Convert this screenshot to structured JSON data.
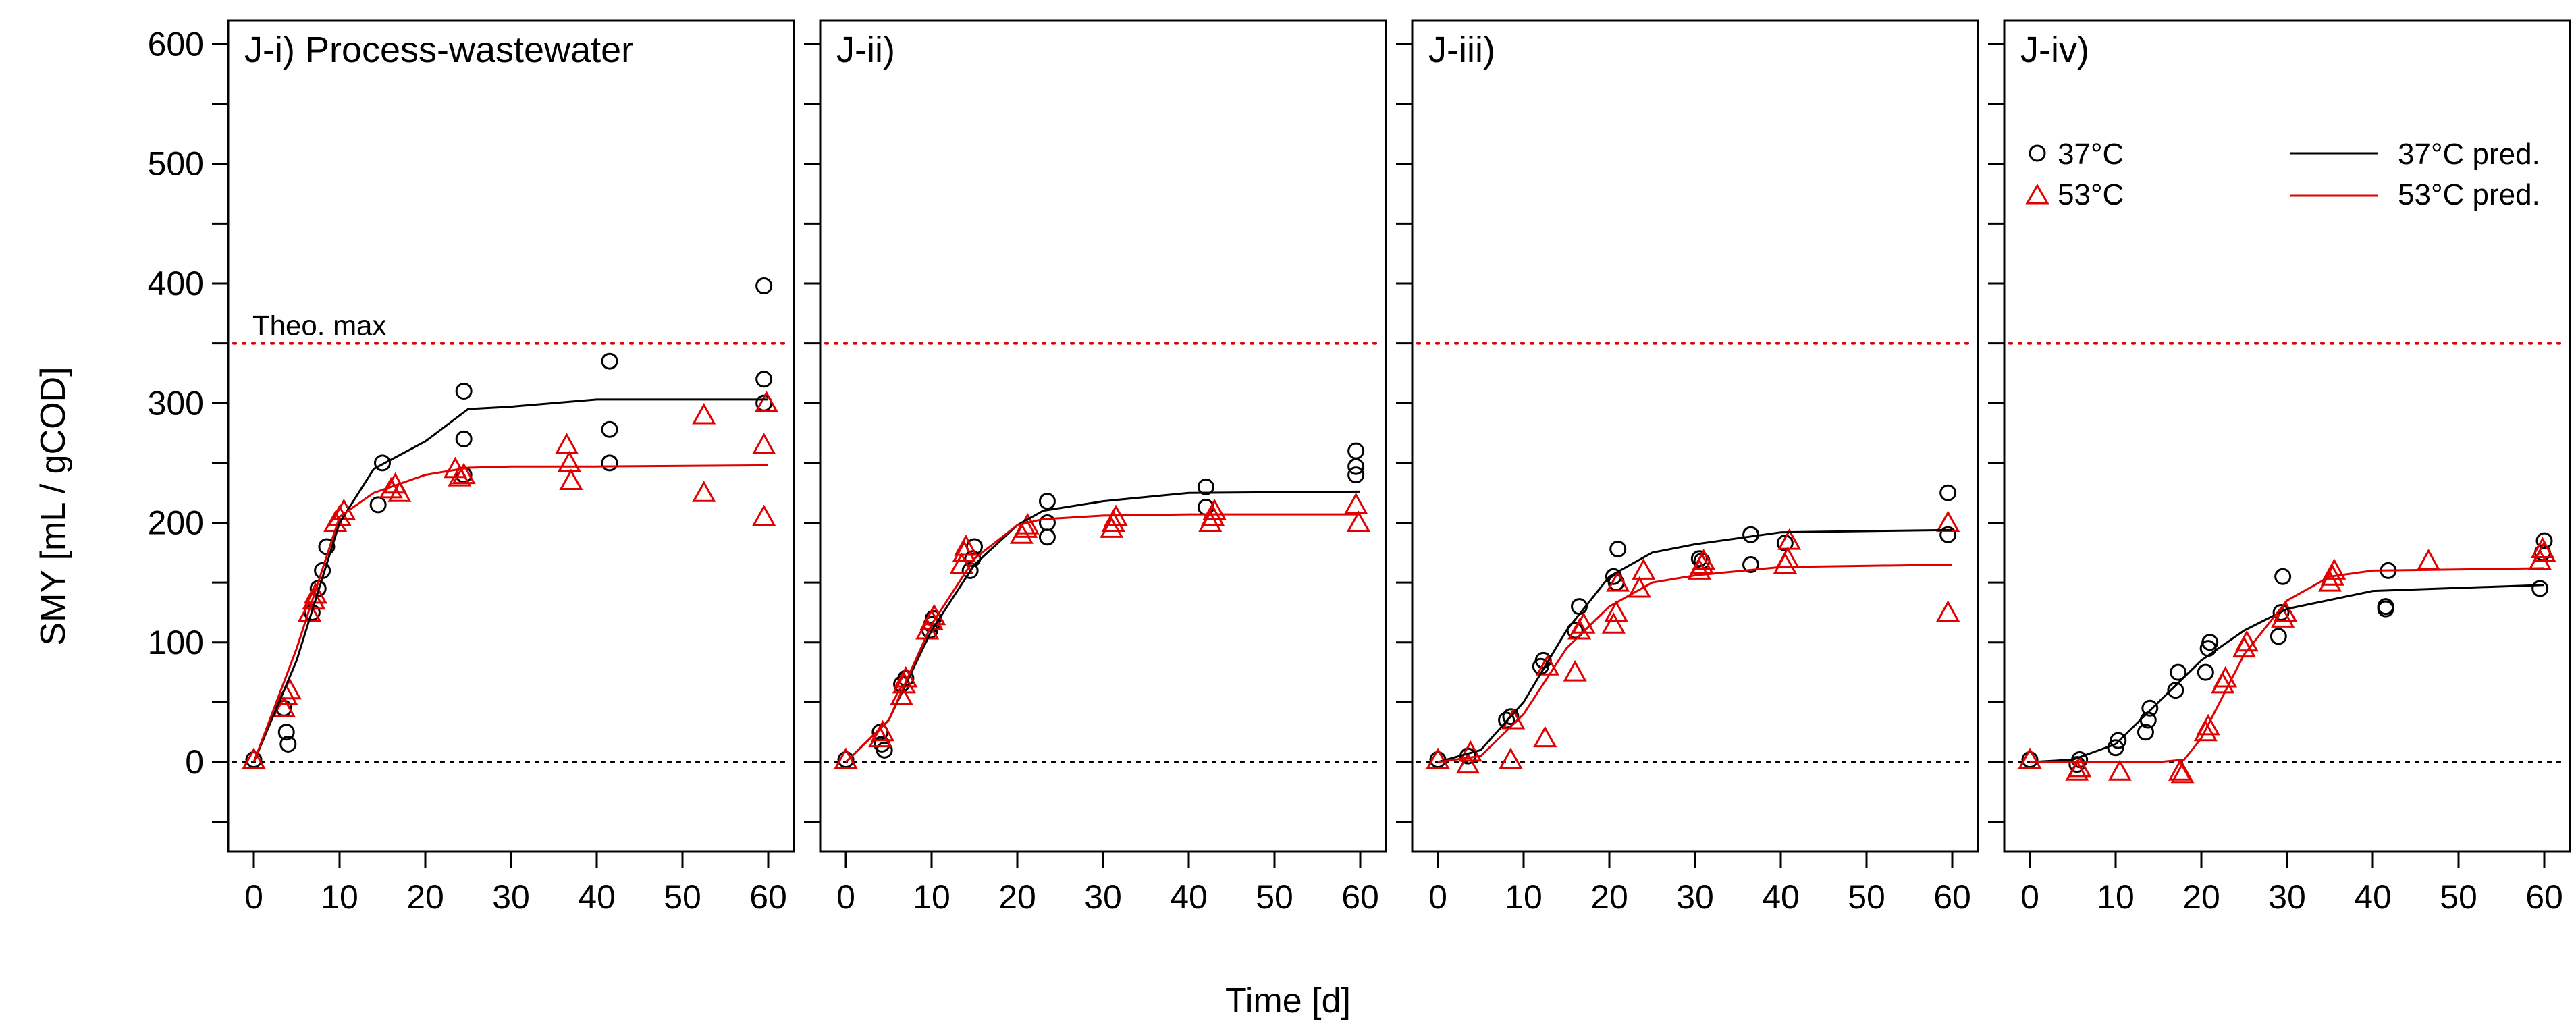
{
  "figure": {
    "ylabel": "SMY [mL / gCOD]",
    "xlabel": "Time [d]",
    "theo_label": "Theo. max",
    "legend": {
      "obs37": "37°C",
      "obs53": "53°C",
      "pred37": "37°C pred.",
      "pred53": "53°C pred."
    },
    "colors": {
      "c37": "#000000",
      "c53": "#e00000",
      "theo": "#e00000",
      "zero": "#000000"
    }
  },
  "chart_data": [
    {
      "type": "scatter",
      "title": "J-i) Process-wastewater",
      "xlim": [
        0,
        60
      ],
      "ylim": [
        -75,
        620
      ],
      "xticks": [
        0,
        10,
        20,
        30,
        40,
        50,
        60
      ],
      "yticks": [
        0,
        100,
        200,
        300,
        400,
        500,
        600
      ],
      "theo_max": 350,
      "series": [
        {
          "name": "37°C",
          "kind": "points",
          "marker": "circle",
          "points": [
            [
              0,
              2
            ],
            [
              3.5,
              45
            ],
            [
              3.8,
              25
            ],
            [
              4,
              15
            ],
            [
              6.8,
              125
            ],
            [
              7.5,
              145
            ],
            [
              8,
              160
            ],
            [
              8.5,
              180
            ],
            [
              14.5,
              215
            ],
            [
              15,
              250
            ],
            [
              24.5,
              310
            ],
            [
              24.5,
              270
            ],
            [
              24.5,
              240
            ],
            [
              41.5,
              335
            ],
            [
              41.5,
              278
            ],
            [
              41.5,
              250
            ],
            [
              59.5,
              398
            ],
            [
              59.5,
              320
            ],
            [
              59.5,
              300
            ]
          ]
        },
        {
          "name": "53°C",
          "kind": "points",
          "marker": "triangle",
          "points": [
            [
              0,
              2
            ],
            [
              3.5,
              45
            ],
            [
              3.8,
              55
            ],
            [
              4.2,
              60
            ],
            [
              6.5,
              125
            ],
            [
              7,
              135
            ],
            [
              7.2,
              140
            ],
            [
              9.5,
              200
            ],
            [
              10,
              205
            ],
            [
              10.5,
              210
            ],
            [
              16,
              228
            ],
            [
              16.5,
              232
            ],
            [
              17,
              225
            ],
            [
              23.5,
              245
            ],
            [
              24,
              238
            ],
            [
              24.5,
              240
            ],
            [
              36.5,
              265
            ],
            [
              36.8,
              250
            ],
            [
              37,
              235
            ],
            [
              52.5,
              290
            ],
            [
              52.5,
              225
            ],
            [
              59.5,
              265
            ],
            [
              59.5,
              205
            ],
            [
              59.8,
              300
            ]
          ]
        },
        {
          "name": "37°C pred.",
          "kind": "line",
          "points": [
            [
              0,
              0
            ],
            [
              5,
              85
            ],
            [
              10,
              200
            ],
            [
              14,
              245
            ],
            [
              20,
              268
            ],
            [
              25,
              295
            ],
            [
              30,
              297
            ],
            [
              40,
              303
            ],
            [
              60,
              303
            ]
          ]
        },
        {
          "name": "53°C pred.",
          "kind": "line",
          "points": [
            [
              0,
              0
            ],
            [
              5,
              95
            ],
            [
              10,
              205
            ],
            [
              14,
              225
            ],
            [
              20,
              240
            ],
            [
              25,
              246
            ],
            [
              30,
              247
            ],
            [
              40,
              247
            ],
            [
              60,
              248
            ]
          ]
        }
      ]
    },
    {
      "type": "scatter",
      "title": "J-ii)",
      "xlim": [
        0,
        60
      ],
      "ylim": [
        -75,
        620
      ],
      "xticks": [
        0,
        10,
        20,
        30,
        40,
        50,
        60
      ],
      "yticks": [
        0,
        100,
        200,
        300,
        400,
        500,
        600
      ],
      "theo_max": 350,
      "series": [
        {
          "name": "37°C",
          "kind": "points",
          "marker": "circle",
          "points": [
            [
              0,
              2
            ],
            [
              4,
              25
            ],
            [
              4.2,
              15
            ],
            [
              4.5,
              10
            ],
            [
              6.5,
              65
            ],
            [
              7,
              70
            ],
            [
              9.8,
              110
            ],
            [
              10,
              115
            ],
            [
              10.2,
              120
            ],
            [
              14.5,
              160
            ],
            [
              14.8,
              170
            ],
            [
              15,
              180
            ],
            [
              23.5,
              218
            ],
            [
              23.5,
              200
            ],
            [
              23.5,
              188
            ],
            [
              42,
              230
            ],
            [
              42,
              213
            ],
            [
              59.5,
              260
            ],
            [
              59.5,
              247
            ],
            [
              59.5,
              240
            ]
          ]
        },
        {
          "name": "53°C",
          "kind": "points",
          "marker": "triangle",
          "points": [
            [
              0,
              2
            ],
            [
              4,
              20
            ],
            [
              4.3,
              25
            ],
            [
              6.5,
              55
            ],
            [
              6.8,
              65
            ],
            [
              7,
              70
            ],
            [
              9.5,
              110
            ],
            [
              10,
              118
            ],
            [
              10.3,
              122
            ],
            [
              13.5,
              165
            ],
            [
              13.8,
              175
            ],
            [
              14,
              180
            ],
            [
              20.5,
              190
            ],
            [
              21,
              195
            ],
            [
              21.2,
              198
            ],
            [
              31,
              195
            ],
            [
              31.2,
              200
            ],
            [
              31.5,
              205
            ],
            [
              42.5,
              200
            ],
            [
              42.8,
              205
            ],
            [
              43,
              210
            ],
            [
              59.5,
              215
            ],
            [
              59.8,
              200
            ]
          ]
        },
        {
          "name": "37°C pred.",
          "kind": "line",
          "points": [
            [
              0,
              0
            ],
            [
              5,
              35
            ],
            [
              10,
              110
            ],
            [
              15,
              165
            ],
            [
              20,
              198
            ],
            [
              23,
              210
            ],
            [
              30,
              218
            ],
            [
              40,
              225
            ],
            [
              60,
              226
            ]
          ]
        },
        {
          "name": "53°C pred.",
          "kind": "line",
          "points": [
            [
              0,
              0
            ],
            [
              5,
              35
            ],
            [
              10,
              115
            ],
            [
              15,
              170
            ],
            [
              20,
              198
            ],
            [
              23,
              203
            ],
            [
              30,
              206
            ],
            [
              40,
              207
            ],
            [
              60,
              207
            ]
          ]
        }
      ]
    },
    {
      "type": "scatter",
      "title": "J-iii)",
      "xlim": [
        0,
        60
      ],
      "ylim": [
        -75,
        620
      ],
      "xticks": [
        0,
        10,
        20,
        30,
        40,
        50,
        60
      ],
      "yticks": [
        0,
        100,
        200,
        300,
        400,
        500,
        600
      ],
      "theo_max": 350,
      "series": [
        {
          "name": "37°C",
          "kind": "points",
          "marker": "circle",
          "points": [
            [
              0,
              2
            ],
            [
              3.5,
              5
            ],
            [
              8,
              35
            ],
            [
              8.5,
              38
            ],
            [
              12,
              80
            ],
            [
              12.3,
              85
            ],
            [
              16,
              110
            ],
            [
              16.5,
              130
            ],
            [
              20.5,
              155
            ],
            [
              20.8,
              150
            ],
            [
              21,
              178
            ],
            [
              30.5,
              170
            ],
            [
              30.8,
              168
            ],
            [
              36.5,
              190
            ],
            [
              36.5,
              165
            ],
            [
              40.5,
              183
            ],
            [
              59.5,
              225
            ],
            [
              59.5,
              190
            ]
          ]
        },
        {
          "name": "53°C",
          "kind": "points",
          "marker": "triangle",
          "points": [
            [
              0,
              2
            ],
            [
              3.5,
              -2
            ],
            [
              3.8,
              8
            ],
            [
              8.5,
              2
            ],
            [
              8.8,
              35
            ],
            [
              12.5,
              20
            ],
            [
              12.8,
              80
            ],
            [
              16,
              75
            ],
            [
              16.5,
              110
            ],
            [
              17,
              115
            ],
            [
              20.5,
              115
            ],
            [
              20.8,
              125
            ],
            [
              21,
              150
            ],
            [
              23.5,
              145
            ],
            [
              24,
              160
            ],
            [
              30.5,
              160
            ],
            [
              30.8,
              165
            ],
            [
              31,
              168
            ],
            [
              40.5,
              165
            ],
            [
              40.8,
              170
            ],
            [
              41,
              185
            ],
            [
              59.5,
              125
            ],
            [
              59.5,
              200
            ]
          ]
        },
        {
          "name": "37°C pred.",
          "kind": "line",
          "points": [
            [
              0,
              0
            ],
            [
              5,
              10
            ],
            [
              10,
              50
            ],
            [
              15,
              110
            ],
            [
              20,
              155
            ],
            [
              25,
              175
            ],
            [
              30,
              182
            ],
            [
              40,
              192
            ],
            [
              60,
              194
            ]
          ]
        },
        {
          "name": "53°C pred.",
          "kind": "line",
          "points": [
            [
              0,
              0
            ],
            [
              5,
              5
            ],
            [
              10,
              40
            ],
            [
              15,
              95
            ],
            [
              20,
              130
            ],
            [
              25,
              150
            ],
            [
              30,
              156
            ],
            [
              40,
              163
            ],
            [
              60,
              165
            ]
          ]
        }
      ]
    },
    {
      "type": "scatter",
      "title": "J-iv)",
      "xlim": [
        0,
        60
      ],
      "ylim": [
        -75,
        620
      ],
      "xticks": [
        0,
        10,
        20,
        30,
        40,
        50,
        60
      ],
      "yticks": [
        0,
        100,
        200,
        300,
        400,
        500,
        600
      ],
      "theo_max": 350,
      "series": [
        {
          "name": "37°C",
          "kind": "points",
          "marker": "circle",
          "points": [
            [
              0,
              2
            ],
            [
              5.5,
              -2
            ],
            [
              5.8,
              2
            ],
            [
              10,
              12
            ],
            [
              10.3,
              18
            ],
            [
              13.5,
              25
            ],
            [
              13.8,
              35
            ],
            [
              14,
              45
            ],
            [
              17,
              60
            ],
            [
              17.3,
              75
            ],
            [
              20.5,
              75
            ],
            [
              20.8,
              95
            ],
            [
              21,
              100
            ],
            [
              29,
              105
            ],
            [
              29.3,
              125
            ],
            [
              29.5,
              155
            ],
            [
              41.5,
              130
            ],
            [
              41.5,
              128
            ],
            [
              41.8,
              160
            ],
            [
              59.5,
              145
            ],
            [
              59.8,
              175
            ],
            [
              60,
              185
            ]
          ]
        },
        {
          "name": "53°C",
          "kind": "points",
          "marker": "triangle",
          "points": [
            [
              0,
              2
            ],
            [
              5.5,
              -8
            ],
            [
              5.8,
              -5
            ],
            [
              10.5,
              -8
            ],
            [
              17.5,
              -8
            ],
            [
              17.8,
              -10
            ],
            [
              20.5,
              25
            ],
            [
              20.8,
              30
            ],
            [
              22.5,
              65
            ],
            [
              22.8,
              70
            ],
            [
              25,
              95
            ],
            [
              25.3,
              100
            ],
            [
              29.5,
              120
            ],
            [
              29.8,
              125
            ],
            [
              35,
              150
            ],
            [
              35.3,
              155
            ],
            [
              35.5,
              160
            ],
            [
              46.5,
              168
            ],
            [
              59.5,
              168
            ],
            [
              59.8,
              178
            ],
            [
              60,
              175
            ]
          ]
        },
        {
          "name": "37°C pred.",
          "kind": "line",
          "points": [
            [
              0,
              0
            ],
            [
              5,
              2
            ],
            [
              10,
              15
            ],
            [
              15,
              50
            ],
            [
              20,
              85
            ],
            [
              25,
              110
            ],
            [
              30,
              128
            ],
            [
              40,
              143
            ],
            [
              60,
              148
            ]
          ]
        },
        {
          "name": "53°C pred.",
          "kind": "line",
          "points": [
            [
              0,
              0
            ],
            [
              15,
              0
            ],
            [
              18,
              2
            ],
            [
              20,
              20
            ],
            [
              25,
              90
            ],
            [
              30,
              135
            ],
            [
              35,
              155
            ],
            [
              40,
              160
            ],
            [
              60,
              162
            ]
          ]
        }
      ]
    }
  ]
}
